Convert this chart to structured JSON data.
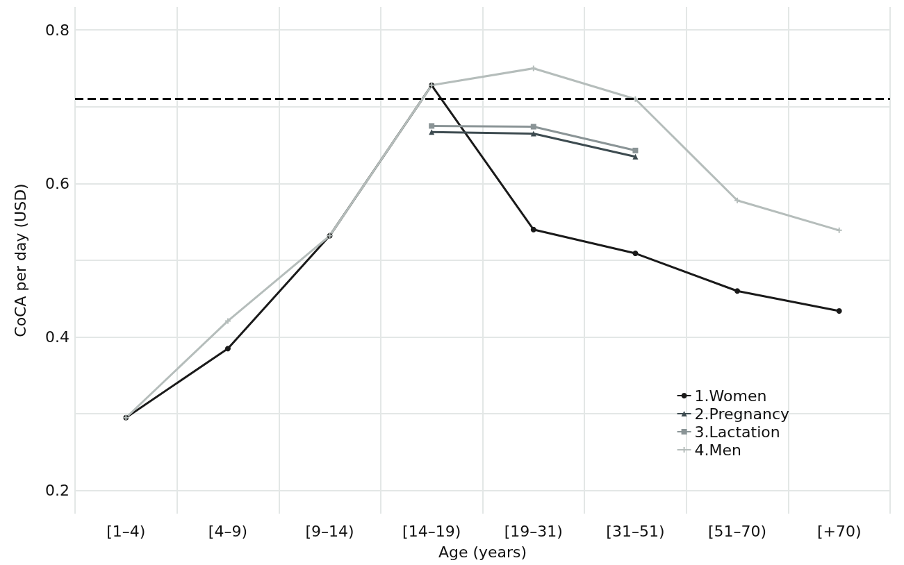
{
  "chart_data": {
    "type": "line",
    "xlabel": "Age (years)",
    "ylabel": "CoCA per day (USD)",
    "categories": [
      "[1–4)",
      "[4–9)",
      "[9–14)",
      "[14–19)",
      "[19–31)",
      "[31–51)",
      "[51–70)",
      "[+70)"
    ],
    "series": [
      {
        "name": "1.Women",
        "color": "#1a1a1a",
        "marker": "circle",
        "values": [
          0.295,
          0.385,
          0.532,
          0.728,
          0.54,
          0.509,
          0.46,
          0.434
        ]
      },
      {
        "name": "2.Pregnancy",
        "color": "#3d4b50",
        "marker": "triangle",
        "values": [
          null,
          null,
          null,
          0.667,
          0.665,
          0.635,
          null,
          null
        ]
      },
      {
        "name": "3.Lactation",
        "color": "#8a9496",
        "marker": "square",
        "values": [
          null,
          null,
          null,
          0.675,
          0.674,
          0.643,
          null,
          null
        ]
      },
      {
        "name": "4.Men",
        "color": "#b5bdbb",
        "marker": "cross",
        "values": [
          0.295,
          0.421,
          0.532,
          0.728,
          0.75,
          0.71,
          0.578,
          0.539
        ]
      }
    ],
    "ylim": [
      0.17,
      0.83
    ],
    "yticks": [
      0.2,
      {
        "value": 0.3,
        "label": null
      },
      0.4,
      {
        "value": 0.5,
        "label": null
      },
      0.6,
      {
        "value": 0.7,
        "label": null
      },
      0.8
    ],
    "ref_lines": [
      {
        "axis": "y",
        "value": 0.71,
        "color": "#000000",
        "line_style": "dashed"
      }
    ],
    "grid": true,
    "legend": "bottom right",
    "line_style": "solid"
  }
}
